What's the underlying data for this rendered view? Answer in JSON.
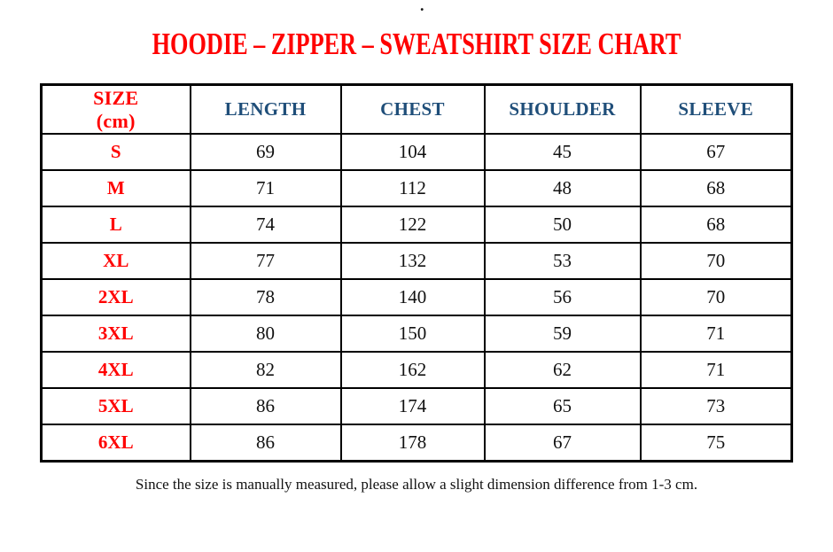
{
  "page": {
    "background_color": "#ffffff",
    "stray_mark": "."
  },
  "title": {
    "text": "HOODIE – ZIPPER – SWEATSHIRT SIZE CHART",
    "color": "#ff0000"
  },
  "table": {
    "unit_note": "cm",
    "header": {
      "size_line1": "SIZE",
      "size_line2": "(cm)",
      "columns": [
        "LENGTH",
        "CHEST",
        "SHOULDER",
        "SLEEVE"
      ],
      "size_header_color": "#ff0000",
      "measure_header_color": "#1f4e79",
      "border_color": "#000000"
    },
    "rows": [
      {
        "size": "S",
        "length": "69",
        "chest": "104",
        "shoulder": "45",
        "sleeve": "67"
      },
      {
        "size": "M",
        "length": "71",
        "chest": "112",
        "shoulder": "48",
        "sleeve": "68"
      },
      {
        "size": "L",
        "length": "74",
        "chest": "122",
        "shoulder": "50",
        "sleeve": "68"
      },
      {
        "size": "XL",
        "length": "77",
        "chest": "132",
        "shoulder": "53",
        "sleeve": "70"
      },
      {
        "size": "2XL",
        "length": "78",
        "chest": "140",
        "shoulder": "56",
        "sleeve": "70"
      },
      {
        "size": "3XL",
        "length": "80",
        "chest": "150",
        "shoulder": "59",
        "sleeve": "71"
      },
      {
        "size": "4XL",
        "length": "82",
        "chest": "162",
        "shoulder": "62",
        "sleeve": "71"
      },
      {
        "size": "5XL",
        "length": "86",
        "chest": "174",
        "shoulder": "65",
        "sleeve": "73"
      },
      {
        "size": "6XL",
        "length": "86",
        "chest": "178",
        "shoulder": "67",
        "sleeve": "75"
      }
    ]
  },
  "footnote": {
    "text": "Since the size is manually measured, please allow a slight dimension difference from 1-3 cm."
  }
}
